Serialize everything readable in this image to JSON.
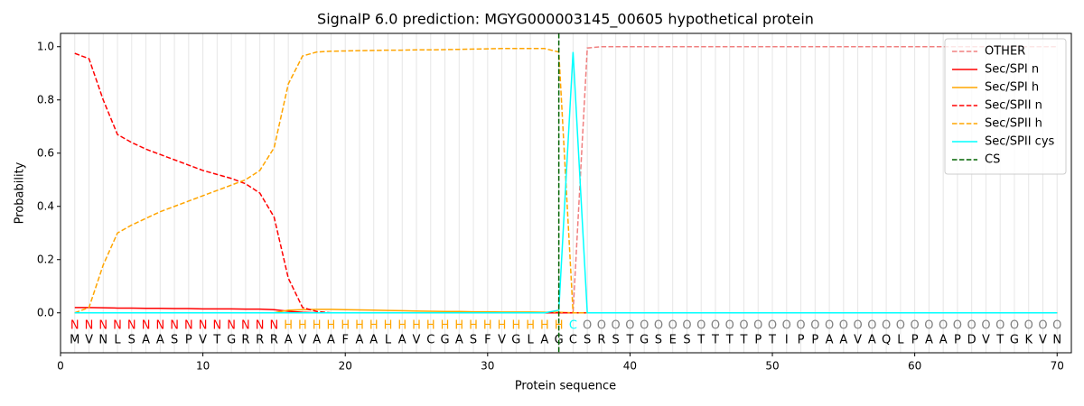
{
  "chart_data": {
    "type": "line",
    "title": "SignalP 6.0 prediction: MGYG000003145_00605 hypothetical protein",
    "xlabel": "Protein sequence",
    "ylabel": "Probability",
    "xlim": [
      0,
      71
    ],
    "ylim": [
      -0.15,
      1.05
    ],
    "xticks": [
      0,
      10,
      20,
      30,
      40,
      50,
      60,
      70
    ],
    "yticks": [
      {
        "value": 0,
        "label": "0.0"
      },
      {
        "value": 0.2,
        "label": "0.2"
      },
      {
        "value": 0.4,
        "label": "0.4"
      },
      {
        "value": 0.6,
        "label": "0.6"
      },
      {
        "value": 0.8,
        "label": "0.8"
      },
      {
        "value": 1.0,
        "label": "1.0"
      }
    ],
    "grid": true,
    "legend": "upper right",
    "x": [
      1,
      2,
      3,
      4,
      5,
      6,
      7,
      8,
      9,
      10,
      11,
      12,
      13,
      14,
      15,
      16,
      17,
      18,
      19,
      20,
      21,
      22,
      23,
      24,
      25,
      26,
      27,
      28,
      29,
      30,
      31,
      32,
      33,
      34,
      35,
      36,
      37,
      38,
      39,
      40,
      41,
      42,
      43,
      44,
      45,
      46,
      47,
      48,
      49,
      50,
      51,
      52,
      53,
      54,
      55,
      56,
      57,
      58,
      59,
      60,
      61,
      62,
      63,
      64,
      65,
      66,
      67,
      68,
      69,
      70
    ],
    "sequence": [
      "M",
      "V",
      "N",
      "L",
      "S",
      "A",
      "A",
      "S",
      "P",
      "V",
      "T",
      "G",
      "R",
      "R",
      "R",
      "A",
      "V",
      "A",
      "A",
      "F",
      "A",
      "A",
      "L",
      "A",
      "V",
      "C",
      "G",
      "A",
      "S",
      "F",
      "V",
      "G",
      "L",
      "A",
      "G",
      "C",
      "S",
      "R",
      "S",
      "T",
      "G",
      "S",
      "E",
      "S",
      "T",
      "T",
      "T",
      "T",
      "P",
      "T",
      "I",
      "P",
      "P",
      "A",
      "A",
      "V",
      "A",
      "Q",
      "L",
      "P",
      "A",
      "A",
      "P",
      "D",
      "V",
      "T",
      "G",
      "K",
      "V",
      "N"
    ],
    "labels": [
      "N",
      "N",
      "N",
      "N",
      "N",
      "N",
      "N",
      "N",
      "N",
      "N",
      "N",
      "N",
      "N",
      "N",
      "N",
      "H",
      "H",
      "H",
      "H",
      "H",
      "H",
      "H",
      "H",
      "H",
      "H",
      "H",
      "H",
      "H",
      "H",
      "H",
      "H",
      "H",
      "H",
      "H",
      "H",
      "C",
      "O",
      "O",
      "O",
      "O",
      "O",
      "O",
      "O",
      "O",
      "O",
      "O",
      "O",
      "O",
      "O",
      "O",
      "O",
      "O",
      "O",
      "O",
      "O",
      "O",
      "O",
      "O",
      "O",
      "O",
      "O",
      "O",
      "O",
      "O",
      "O",
      "O",
      "O",
      "O",
      "O",
      "O"
    ],
    "label_colors": {
      "N": "#ff0000",
      "H": "#ffa500",
      "C": "#00ffff",
      "O": "#808080"
    },
    "series": [
      {
        "name": "OTHER",
        "color": "#f08080",
        "dash": true,
        "values": [
          0,
          0,
          0,
          0,
          0,
          0,
          0,
          0,
          0,
          0,
          0,
          0,
          0,
          0,
          0,
          0,
          0,
          0,
          0,
          0,
          0,
          0,
          0,
          0,
          0,
          0,
          0,
          0,
          0,
          0,
          0,
          0,
          0,
          0,
          0,
          0,
          0.995,
          1,
          1,
          1,
          1,
          1,
          1,
          1,
          1,
          1,
          1,
          1,
          1,
          1,
          1,
          1,
          1,
          1,
          1,
          1,
          1,
          1,
          1,
          1,
          1,
          1,
          1,
          1,
          1,
          1,
          1,
          1,
          1,
          1
        ]
      },
      {
        "name": "Sec/SPI n",
        "color": "#ff0000",
        "dash": false,
        "values": [
          0.02,
          0.02,
          0.019,
          0.018,
          0.018,
          0.017,
          0.017,
          0.016,
          0.016,
          0.015,
          0.015,
          0.015,
          0.014,
          0.014,
          0.012,
          0.006,
          0.002,
          0,
          0,
          0,
          0,
          0,
          0,
          0,
          0,
          0,
          0,
          0,
          0,
          0,
          0,
          0,
          0,
          0,
          0,
          0,
          0,
          0,
          0,
          0,
          0,
          0,
          0,
          0,
          0,
          0,
          0,
          0,
          0,
          0,
          0,
          0,
          0,
          0,
          0,
          0,
          0,
          0,
          0,
          0,
          0,
          0,
          0,
          0,
          0,
          0,
          0,
          0,
          0,
          0
        ]
      },
      {
        "name": "Sec/SPI h",
        "color": "#ffa500",
        "dash": false,
        "values": [
          0,
          0,
          0,
          0,
          0,
          0,
          0,
          0,
          0,
          0,
          0,
          0,
          0,
          0,
          0,
          0.01,
          0.012,
          0.013,
          0.013,
          0.012,
          0.011,
          0.01,
          0.009,
          0.008,
          0.007,
          0.006,
          0.005,
          0.005,
          0.004,
          0.004,
          0.003,
          0.003,
          0.003,
          0.002,
          0.002,
          0,
          0,
          0,
          0,
          0,
          0,
          0,
          0,
          0,
          0,
          0,
          0,
          0,
          0,
          0,
          0,
          0,
          0,
          0,
          0,
          0,
          0,
          0,
          0,
          0,
          0,
          0,
          0,
          0,
          0,
          0,
          0,
          0,
          0,
          0
        ]
      },
      {
        "name": "Sec/SPII n",
        "color": "#ff0000",
        "dash": true,
        "values": [
          0.975,
          0.955,
          0.8,
          0.67,
          0.64,
          0.615,
          0.595,
          0.575,
          0.555,
          0.535,
          0.52,
          0.505,
          0.485,
          0.45,
          0.36,
          0.13,
          0.02,
          0.005,
          0,
          0,
          0,
          0,
          0,
          0,
          0,
          0,
          0,
          0,
          0,
          0,
          0,
          0,
          0,
          0,
          0,
          0,
          0,
          0,
          0,
          0,
          0,
          0,
          0,
          0,
          0,
          0,
          0,
          0,
          0,
          0,
          0,
          0,
          0,
          0,
          0,
          0,
          0,
          0,
          0,
          0,
          0,
          0,
          0,
          0,
          0,
          0,
          0,
          0,
          0,
          0
        ]
      },
      {
        "name": "Sec/SPII h",
        "color": "#ffa500",
        "dash": true,
        "values": [
          0,
          0.02,
          0.18,
          0.3,
          0.33,
          0.355,
          0.38,
          0.4,
          0.42,
          0.44,
          0.46,
          0.48,
          0.5,
          0.535,
          0.62,
          0.86,
          0.965,
          0.98,
          0.983,
          0.984,
          0.985,
          0.986,
          0.987,
          0.987,
          0.988,
          0.988,
          0.989,
          0.99,
          0.991,
          0.992,
          0.993,
          0.993,
          0.993,
          0.993,
          0.98,
          0,
          0,
          0,
          0,
          0,
          0,
          0,
          0,
          0,
          0,
          0,
          0,
          0,
          0,
          0,
          0,
          0,
          0,
          0,
          0,
          0,
          0,
          0,
          0,
          0,
          0,
          0,
          0,
          0,
          0,
          0,
          0,
          0,
          0,
          0
        ]
      },
      {
        "name": "Sec/SPII cys",
        "color": "#00ffff",
        "dash": false,
        "values": [
          0,
          0,
          0,
          0,
          0,
          0,
          0,
          0,
          0,
          0,
          0,
          0,
          0,
          0,
          0,
          0,
          0,
          0,
          0,
          0,
          0,
          0,
          0,
          0,
          0,
          0,
          0,
          0,
          0,
          0,
          0,
          0,
          0,
          0,
          0.01,
          0.98,
          0,
          0,
          0,
          0,
          0,
          0,
          0,
          0,
          0,
          0,
          0,
          0,
          0,
          0,
          0,
          0,
          0,
          0,
          0,
          0,
          0,
          0,
          0,
          0,
          0,
          0,
          0,
          0,
          0,
          0,
          0,
          0,
          0,
          0
        ]
      }
    ],
    "cs": {
      "name": "CS",
      "color": "#006400",
      "x": 35
    }
  }
}
